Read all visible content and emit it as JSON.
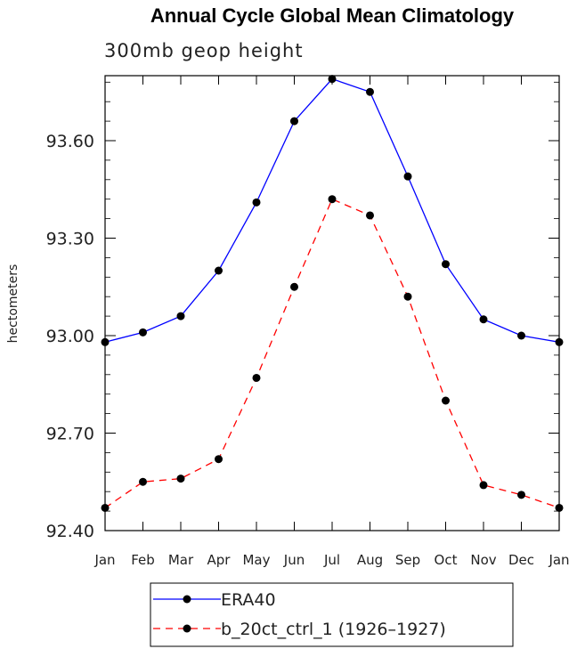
{
  "chart_data": {
    "type": "line",
    "title": "Annual Cycle Global Mean Climatology",
    "subtitle": "300mb geop height",
    "ylabel": "hectometers",
    "xlabel": "",
    "categories": [
      "Jan",
      "Feb",
      "Mar",
      "Apr",
      "May",
      "Jun",
      "Jul",
      "Aug",
      "Sep",
      "Oct",
      "Nov",
      "Dec",
      "Jan"
    ],
    "ylim": [
      92.4,
      93.8
    ],
    "yticks": [
      "92.40",
      "92.70",
      "93.00",
      "93.30",
      "93.60"
    ],
    "grid": false,
    "legend_position": "bottom",
    "series": [
      {
        "name": "ERA40",
        "color": "#0000ff",
        "dash": "solid",
        "values": [
          92.98,
          93.01,
          93.06,
          93.2,
          93.41,
          93.66,
          93.79,
          93.75,
          93.49,
          93.22,
          93.05,
          93.0,
          92.98
        ]
      },
      {
        "name": "b_20ct_ctrl_1 (1926–1927)",
        "color": "#ff0000",
        "dash": "dashed",
        "values": [
          92.47,
          92.55,
          92.56,
          92.62,
          92.87,
          93.15,
          93.42,
          93.37,
          93.12,
          92.8,
          92.54,
          92.51,
          92.47
        ]
      }
    ]
  }
}
